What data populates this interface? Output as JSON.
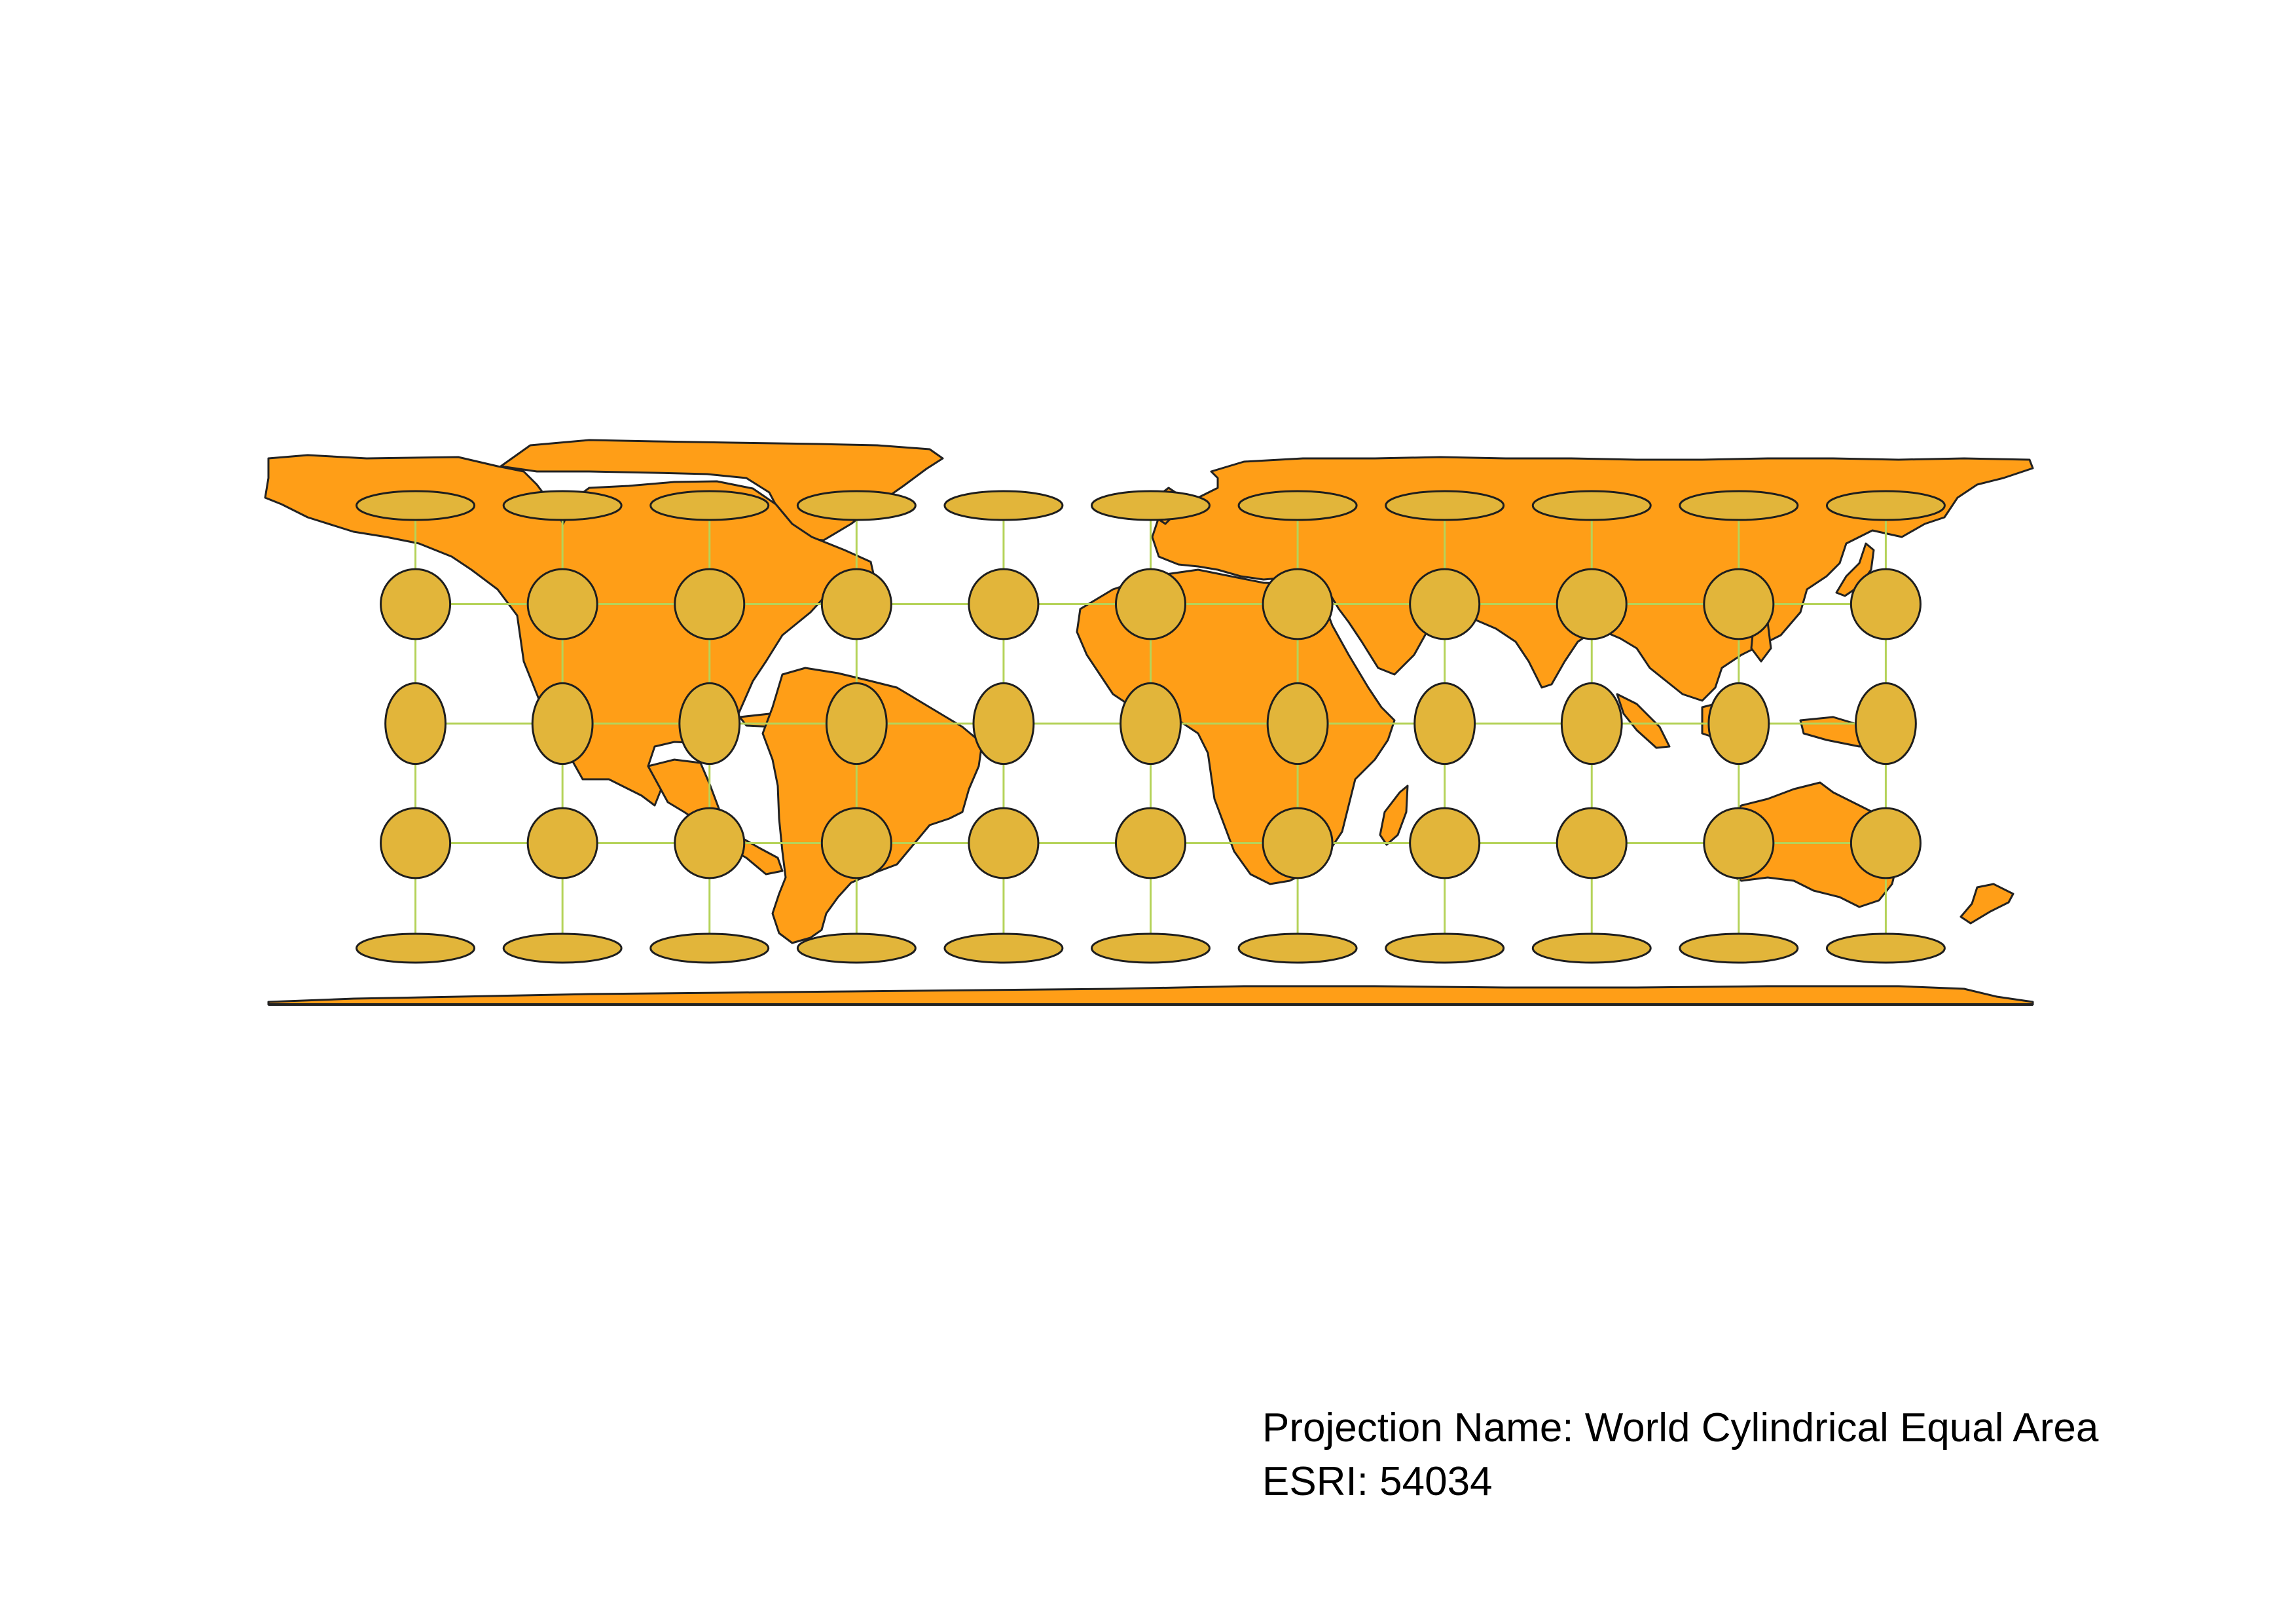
{
  "caption": {
    "projection_line": "Projection Name: World Cylindrical Equal Area",
    "code_line": "ESRI: 54034"
  },
  "map": {
    "projection": "World Cylindrical Equal Area",
    "land_color": "#FF9E17",
    "border_color": "#222222",
    "graticule_color": "#B5D35A",
    "indicatrix_fill": "#E2B53A",
    "indicatrix_stroke": "#1E1E1E",
    "graticule": {
      "longitudes": [
        -150,
        -120,
        -90,
        -60,
        -30,
        0,
        30,
        60,
        90,
        120,
        150
      ],
      "latitudes": [
        -60,
        -30,
        0,
        30,
        60
      ]
    },
    "indicatrix_note": "Tissot indicatrices at graticule intersections"
  }
}
